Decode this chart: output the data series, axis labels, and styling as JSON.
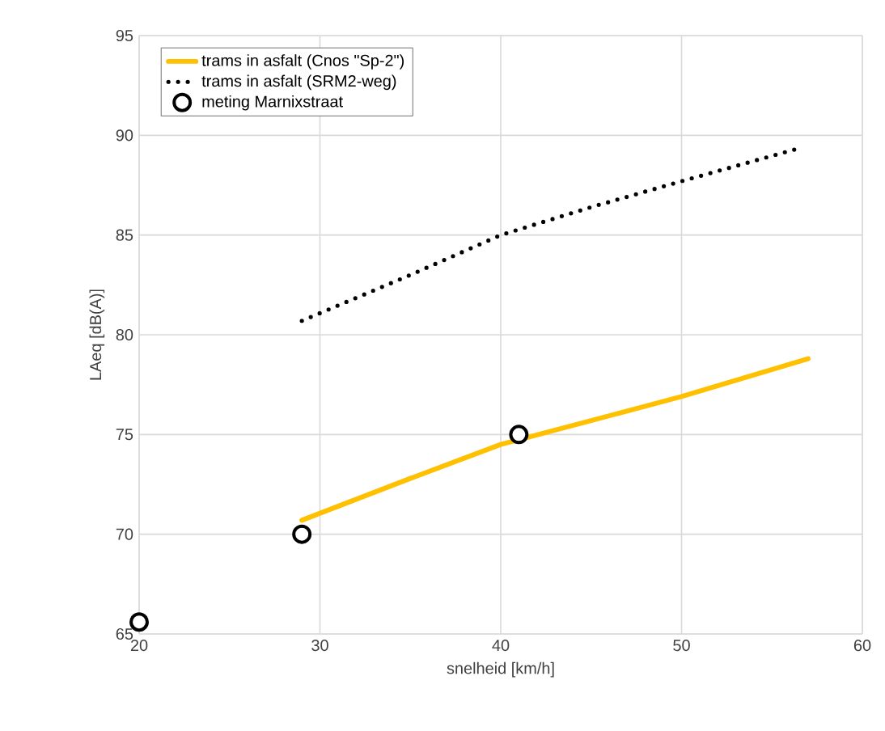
{
  "chart_data": {
    "type": "line",
    "xlabel": "snelheid [km/h]",
    "ylabel": "LAeq [dB(A)]",
    "xlim": [
      20,
      60
    ],
    "ylim": [
      65,
      95
    ],
    "xticks": [
      20,
      30,
      40,
      50,
      60
    ],
    "yticks": [
      65,
      70,
      75,
      80,
      85,
      90,
      95
    ],
    "grid": true,
    "legend": "top left",
    "series": [
      {
        "name": "trams in asfalt (Cnos \"Sp-2\")",
        "line_style": "solid",
        "marker": "none",
        "color": "#ffc000",
        "x": [
          29,
          35,
          40,
          45,
          50,
          57
        ],
        "values": [
          70.7,
          72.8,
          74.5,
          75.7,
          76.9,
          78.8
        ]
      },
      {
        "name": "trams in asfalt (SRM2-weg)",
        "line_style": "dotted",
        "marker": "none",
        "color": "#000000",
        "x": [
          29,
          35,
          40,
          45,
          50,
          56.3
        ],
        "values": [
          80.7,
          83.0,
          85.0,
          86.4,
          87.7,
          89.3
        ]
      },
      {
        "name": "meting Marnixstraat",
        "type": "scatter",
        "marker": "circle",
        "color": "#000000",
        "x": [
          20,
          29,
          41
        ],
        "values": [
          65.6,
          70,
          75
        ]
      }
    ]
  }
}
